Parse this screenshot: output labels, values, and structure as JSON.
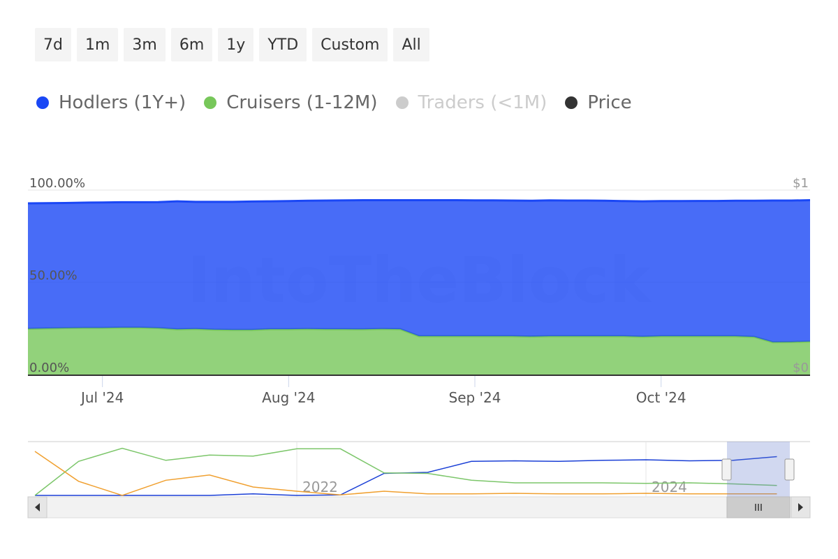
{
  "range_buttons": [
    "7d",
    "1m",
    "3m",
    "6m",
    "1y",
    "YTD",
    "Custom",
    "All"
  ],
  "chart_data": [
    {
      "type": "area",
      "stacked": true,
      "watermark": "IntoTheBlock",
      "categories": [
        null,
        null,
        null,
        null,
        "Jul '24",
        null,
        null,
        null,
        null,
        null,
        null,
        null,
        null,
        null,
        "Aug '24",
        null,
        null,
        null,
        null,
        null,
        null,
        null,
        null,
        null,
        "Sep '24",
        null,
        null,
        null,
        null,
        null,
        null,
        null,
        null,
        null,
        "Oct '24",
        null,
        null,
        null,
        null,
        null,
        null,
        null,
        null
      ],
      "series": [
        {
          "name": "Hodlers (1Y+)",
          "color": "#1a47f5",
          "values": [
            68.0,
            67.9,
            67.8,
            67.9,
            68.0,
            68.0,
            68.0,
            68.3,
            69.4,
            68.9,
            69.3,
            69.4,
            69.6,
            69.3,
            69.4,
            69.5,
            69.7,
            69.8,
            70.0,
            69.8,
            69.9,
            73.7,
            73.7,
            73.7,
            73.6,
            73.6,
            73.5,
            73.6,
            73.6,
            73.5,
            73.5,
            73.4,
            73.2,
            73.4,
            73.2,
            73.2,
            73.3,
            73.3,
            73.4,
            73.8,
            76.8,
            76.7,
            76.6
          ]
        },
        {
          "name": "Cruisers (1-12M)",
          "color": "#77c75a",
          "values": [
            24.8,
            25.0,
            25.2,
            25.3,
            25.3,
            25.4,
            25.4,
            25.2,
            24.5,
            24.7,
            24.3,
            24.2,
            24.2,
            24.6,
            24.6,
            24.7,
            24.6,
            24.6,
            24.5,
            24.7,
            24.6,
            20.8,
            20.8,
            20.8,
            20.8,
            20.8,
            20.8,
            20.6,
            20.8,
            20.8,
            20.8,
            20.8,
            20.8,
            20.5,
            20.8,
            20.8,
            20.8,
            20.8,
            20.8,
            20.4,
            17.5,
            17.6,
            17.9
          ]
        },
        {
          "name": "Traders (<1M)",
          "color": "#cccccc",
          "visible": false
        },
        {
          "name": "Price",
          "color": "#333333",
          "axis": "y2"
        }
      ],
      "ylim": [
        0,
        100
      ],
      "yticks": [
        {
          "value": 0,
          "label": "0.00%"
        },
        {
          "value": 50,
          "label": "50.00%"
        },
        {
          "value": 100,
          "label": "100.00%"
        }
      ],
      "y2lim": [
        0,
        1
      ],
      "y2ticks": [
        {
          "value": 0,
          "label": "$0"
        },
        {
          "value": 1,
          "label": "$1"
        }
      ],
      "grid": true
    },
    {
      "type": "line",
      "categories": [
        null,
        null,
        null,
        null,
        null,
        null,
        "2022",
        null,
        null,
        null,
        null,
        null,
        null,
        null,
        "2024",
        null,
        null,
        null
      ],
      "series": [
        {
          "color": "#1a3fd6",
          "values": [
            0,
            0,
            0,
            0,
            0,
            3,
            0,
            1,
            42,
            44,
            65,
            66,
            65,
            67,
            68,
            66,
            67,
            74
          ]
        },
        {
          "color": "#7cc66a",
          "values": [
            0,
            65,
            90,
            67,
            77,
            75,
            89,
            89,
            43,
            42,
            29,
            24,
            24,
            24,
            23,
            24,
            22,
            19
          ]
        },
        {
          "color": "#f0a030",
          "values": [
            84,
            27,
            0,
            29,
            39,
            16,
            8,
            1,
            8,
            3,
            3,
            4,
            3,
            3,
            4,
            3,
            3,
            3
          ]
        }
      ],
      "ylim": [
        0,
        100
      ]
    }
  ]
}
